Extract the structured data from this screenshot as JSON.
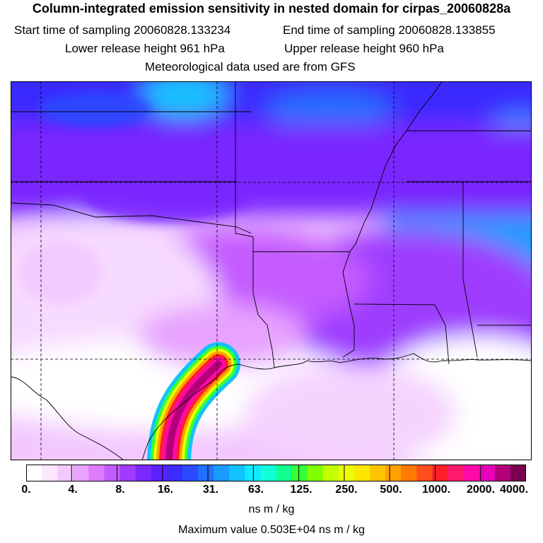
{
  "header": {
    "title": "Column-integrated emission sensitivity in nested domain for cirpas_20060828a",
    "start_label": "Start time of sampling 20060828.133234",
    "end_label": "End time of sampling 20060828.133855",
    "lower_release": "Lower release height  961 hPa",
    "upper_release": "Upper release height  960 hPa",
    "met_data": "Meteorological data used are from GFS"
  },
  "colorbar": {
    "colors": [
      "#ffffff",
      "#fbe6ff",
      "#f2c8ff",
      "#e7a3ff",
      "#dd7cff",
      "#c45cff",
      "#9f3cff",
      "#7a28ff",
      "#5a22ff",
      "#3b2cff",
      "#2a4bff",
      "#2270ff",
      "#1a9bff",
      "#12c3ff",
      "#0fe8ff",
      "#13ffd9",
      "#10ff90",
      "#36ff36",
      "#7fff00",
      "#c3ff00",
      "#eaff00",
      "#ffe600",
      "#ffc400",
      "#ffa000",
      "#ff7a00",
      "#ff4e1c",
      "#ff1f2a",
      "#ff1a6e",
      "#ff0aa6",
      "#e600b9",
      "#b3007a",
      "#7a0050"
    ],
    "tick_labels": [
      "0.",
      "4.",
      "8.",
      "16.",
      "31.",
      "63.",
      "125.",
      "250.",
      "500.",
      "1000.",
      "2000.",
      "4000."
    ],
    "units": "ns m / kg"
  },
  "footer": {
    "max_value": "Maximum value  0.503E+04 ns m / kg"
  }
}
